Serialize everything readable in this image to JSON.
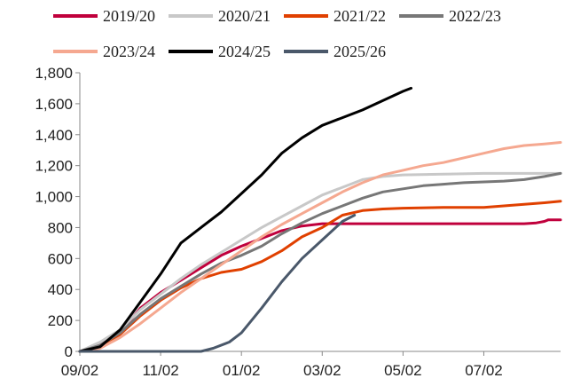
{
  "chart_data": {
    "type": "line",
    "title": "",
    "xlabel": "",
    "ylabel": "",
    "ylim": [
      0,
      1800
    ],
    "y_ticks": [
      0,
      200,
      400,
      600,
      800,
      1000,
      1200,
      1400,
      1600,
      1800
    ],
    "y_tick_labels": [
      "0",
      "200",
      "400",
      "600",
      "800",
      "1,000",
      "1,200",
      "1,400",
      "1,600",
      "1,800"
    ],
    "x_ticks": [
      0,
      2,
      4,
      6,
      8,
      10
    ],
    "x_tick_labels": [
      "09/02",
      "11/02",
      "01/02",
      "03/02",
      "05/02",
      "07/02"
    ],
    "xlim": [
      0,
      11.9
    ],
    "x_unit": "months from 09/02",
    "grid": false,
    "legend_position": "top",
    "series": [
      {
        "name": "2019/20",
        "color": "#c0003c",
        "x": [
          0,
          0.5,
          1,
          1.5,
          2,
          2.5,
          3,
          3.5,
          4,
          4.5,
          5,
          5.5,
          6,
          8,
          10,
          11,
          11.3,
          11.5,
          11.6,
          11.9
        ],
        "y": [
          0,
          40,
          120,
          280,
          380,
          460,
          540,
          620,
          680,
          730,
          780,
          810,
          825,
          825,
          825,
          825,
          830,
          840,
          850,
          850
        ]
      },
      {
        "name": "2020/21",
        "color": "#c8c8c8",
        "x": [
          0,
          0.5,
          1,
          1.5,
          2,
          2.5,
          3,
          3.5,
          4,
          4.5,
          5,
          5.5,
          6,
          6.5,
          7,
          7.5,
          8,
          9,
          10,
          11,
          11.9
        ],
        "y": [
          0,
          60,
          140,
          270,
          370,
          470,
          560,
          640,
          720,
          800,
          870,
          940,
          1010,
          1060,
          1110,
          1130,
          1140,
          1145,
          1150,
          1150,
          1150
        ]
      },
      {
        "name": "2021/22",
        "color": "#e04000",
        "x": [
          0,
          0.5,
          1,
          1.5,
          2,
          2.5,
          3,
          3.5,
          4,
          4.5,
          5,
          5.5,
          6,
          6.5,
          7,
          7.5,
          8,
          9,
          10,
          10.5,
          11,
          11.5,
          11.9
        ],
        "y": [
          0,
          30,
          110,
          230,
          330,
          410,
          470,
          510,
          530,
          580,
          650,
          740,
          800,
          880,
          910,
          920,
          925,
          930,
          930,
          940,
          950,
          960,
          970
        ]
      },
      {
        "name": "2022/23",
        "color": "#777777",
        "x": [
          0,
          0.5,
          1,
          1.5,
          2,
          2.5,
          3,
          3.5,
          4,
          4.5,
          5,
          5.5,
          6,
          6.5,
          7,
          7.5,
          8,
          8.5,
          9,
          9.5,
          10,
          10.5,
          11,
          11.5,
          11.9
        ],
        "y": [
          0,
          40,
          120,
          240,
          340,
          420,
          500,
          570,
          620,
          680,
          760,
          830,
          890,
          940,
          990,
          1030,
          1050,
          1070,
          1080,
          1090,
          1095,
          1100,
          1110,
          1130,
          1150
        ]
      },
      {
        "name": "2023/24",
        "color": "#f5a890",
        "x": [
          0,
          0.5,
          1,
          1.5,
          2,
          2.5,
          3,
          3.5,
          4,
          4.5,
          5,
          5.5,
          6,
          6.5,
          7,
          7.5,
          8,
          8.5,
          9,
          9.5,
          10,
          10.5,
          11,
          11.5,
          11.9
        ],
        "y": [
          0,
          20,
          90,
          180,
          280,
          380,
          470,
          560,
          650,
          740,
          820,
          890,
          960,
          1030,
          1090,
          1140,
          1170,
          1200,
          1220,
          1250,
          1280,
          1310,
          1330,
          1340,
          1350
        ]
      },
      {
        "name": "2024/25",
        "color": "#000000",
        "x": [
          0,
          0.5,
          1,
          1.5,
          2,
          2.5,
          3,
          3.5,
          4,
          4.5,
          5,
          5.5,
          6,
          6.5,
          7,
          7.5,
          8,
          8.2
        ],
        "y": [
          0,
          30,
          140,
          320,
          500,
          700,
          800,
          900,
          1020,
          1140,
          1280,
          1380,
          1460,
          1510,
          1560,
          1620,
          1680,
          1700
        ]
      },
      {
        "name": "2025/26",
        "color": "#4a586a",
        "x": [
          0,
          1,
          2,
          3,
          3.3,
          3.7,
          4,
          4.5,
          5,
          5.5,
          6,
          6.5,
          6.8
        ],
        "y": [
          0,
          0,
          0,
          0,
          20,
          60,
          120,
          280,
          450,
          600,
          720,
          840,
          880
        ]
      }
    ]
  }
}
